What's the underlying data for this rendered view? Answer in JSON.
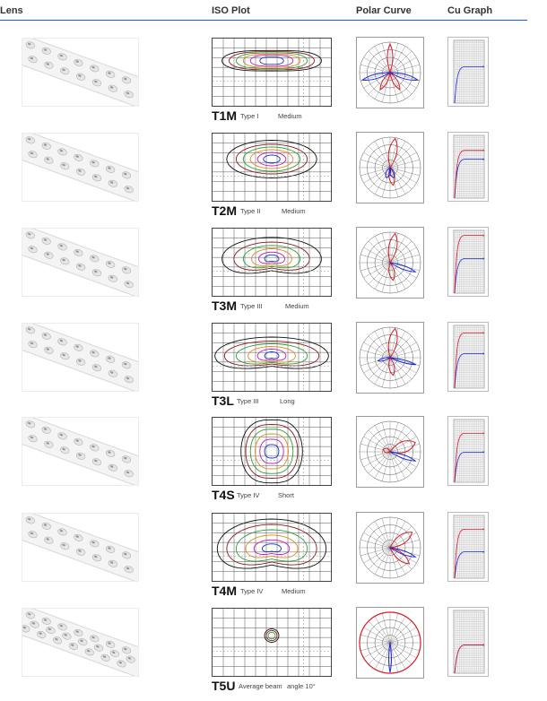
{
  "headers": {
    "lens": "Lens",
    "iso": "ISO Plot",
    "polar": "Polar Curve",
    "cu": "Cu Graph"
  },
  "accent_color": "#1a63b8",
  "rows": [
    {
      "code": "T1M",
      "type": "Type I",
      "distance": "Medium"
    },
    {
      "code": "T2M",
      "type": "Type II",
      "distance": "Medium"
    },
    {
      "code": "T3M",
      "type": "Type III",
      "distance": "Medium"
    },
    {
      "code": "T3L",
      "type": "Type III",
      "distance": "Long"
    },
    {
      "code": "T4S",
      "type": "Type IV",
      "distance": "Short"
    },
    {
      "code": "T4M",
      "type": "Type IV",
      "distance": "Medium"
    },
    {
      "code": "T5U",
      "type": "Average beam",
      "distance": "angle 10°"
    }
  ]
}
